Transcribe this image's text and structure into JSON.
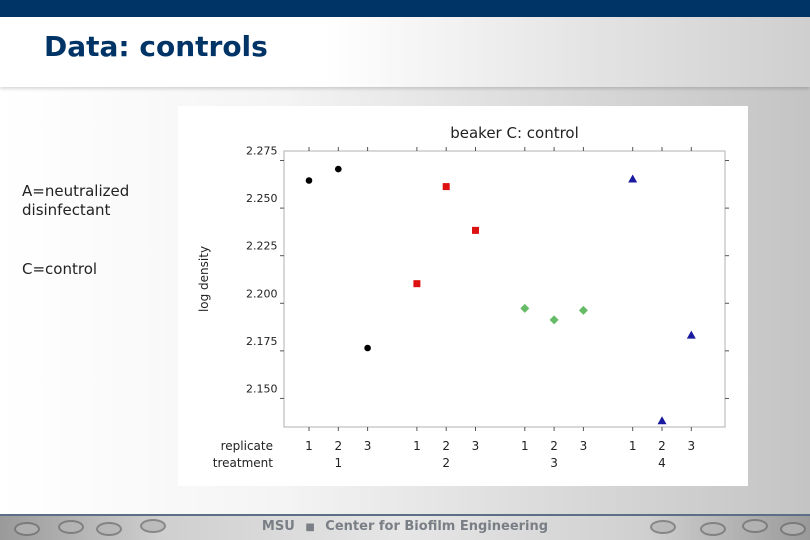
{
  "slide": {
    "title": "Data: controls",
    "notes": [
      "A=neutralized disinfectant",
      "C=control"
    ],
    "footer": {
      "org": "MSU",
      "separator": "■",
      "center": "Center for Biofilm Engineering"
    }
  },
  "chart_data": {
    "type": "scatter",
    "title": "beaker C: control",
    "ylabel": "log density",
    "xlabel": "",
    "ylim": [
      2.135,
      2.28
    ],
    "yticks": [
      2.275,
      2.25,
      2.225,
      2.2,
      2.175,
      2.15
    ],
    "ytick_labels": [
      "2.275",
      "2.250",
      "2.225",
      "2.200",
      "2.175",
      "2.150"
    ],
    "x_group_labels": {
      "replicate": "replicate",
      "treatment": "treatment"
    },
    "positions": [
      {
        "replicate": "1",
        "treatment": ""
      },
      {
        "replicate": "2",
        "treatment": "1"
      },
      {
        "replicate": "3",
        "treatment": ""
      },
      {
        "replicate": "1",
        "treatment": ""
      },
      {
        "replicate": "2",
        "treatment": "2"
      },
      {
        "replicate": "3",
        "treatment": ""
      },
      {
        "replicate": "1",
        "treatment": ""
      },
      {
        "replicate": "2",
        "treatment": "3"
      },
      {
        "replicate": "3",
        "treatment": ""
      },
      {
        "replicate": "1",
        "treatment": ""
      },
      {
        "replicate": "2",
        "treatment": "4"
      },
      {
        "replicate": "3",
        "treatment": ""
      }
    ],
    "series": [
      {
        "group": 1,
        "marker": "circle",
        "color": "#000000",
        "points": [
          {
            "pos": 1,
            "y": 2.2645
          },
          {
            "pos": 2,
            "y": 2.2705
          },
          {
            "pos": 3,
            "y": 2.1765
          }
        ]
      },
      {
        "group": 2,
        "marker": "square",
        "color": "#dd1111",
        "points": [
          {
            "pos": 4,
            "y": 2.2103
          },
          {
            "pos": 5,
            "y": 2.2613
          },
          {
            "pos": 6,
            "y": 2.2383
          }
        ]
      },
      {
        "group": 3,
        "marker": "diamond",
        "color": "#66bb66",
        "points": [
          {
            "pos": 7,
            "y": 2.1973
          },
          {
            "pos": 8,
            "y": 2.1913
          },
          {
            "pos": 9,
            "y": 2.1963
          }
        ]
      },
      {
        "group": 4,
        "marker": "triangle",
        "color": "#1a1aa0",
        "points": [
          {
            "pos": 10,
            "y": 2.2653
          },
          {
            "pos": 11,
            "y": 2.1383
          },
          {
            "pos": 12,
            "y": 2.1833
          }
        ]
      }
    ],
    "grid": false,
    "legend": "none"
  }
}
